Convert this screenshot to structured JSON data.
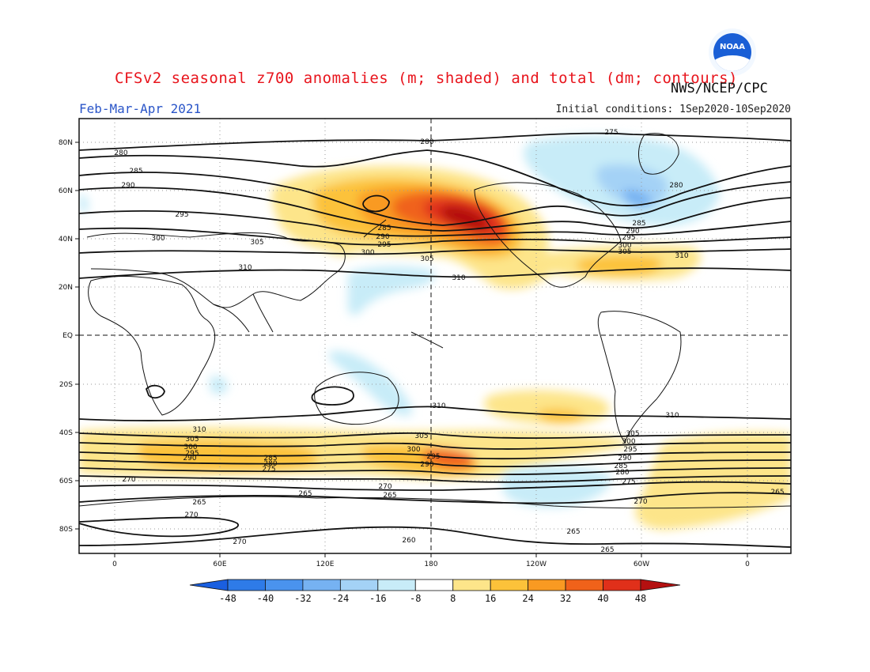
{
  "header": {
    "title": "CFSv2 seasonal z700 anomalies (m; shaded) and total (dm; contours)",
    "agency": "NWS/NCEP/CPC",
    "period": "Feb-Mar-Apr 2021",
    "initial_conditions": "Initial conditions: 1Sep2020-10Sep2020",
    "logo_text": "NOAA"
  },
  "map": {
    "lon_tick_labels": [
      "0",
      "60E",
      "120E",
      "180",
      "120W",
      "60W",
      "0"
    ],
    "lat_tick_labels": [
      "80N",
      "60N",
      "40N",
      "20N",
      "EQ",
      "20S",
      "40S",
      "60S",
      "80S"
    ],
    "colors": {
      "contour": "#111111",
      "coast": "#111111",
      "grid": "#9a9a9a",
      "background": "#ffffff"
    },
    "contour_levels_shown": [
      "260",
      "265",
      "270",
      "275",
      "280",
      "285",
      "290",
      "295",
      "300",
      "305",
      "310"
    ]
  },
  "colorbar": {
    "labels": [
      "-48",
      "-40",
      "-32",
      "-24",
      "-16",
      "-8",
      "8",
      "16",
      "24",
      "32",
      "40",
      "48"
    ],
    "colors": [
      "#1a5fe0",
      "#2e7be8",
      "#4a93ee",
      "#76b2f2",
      "#a4d2f6",
      "#c8ecf8",
      "#ffffff",
      "#fde58a",
      "#fcc23a",
      "#f99a22",
      "#f0621a",
      "#e0301a",
      "#b41010"
    ]
  }
}
